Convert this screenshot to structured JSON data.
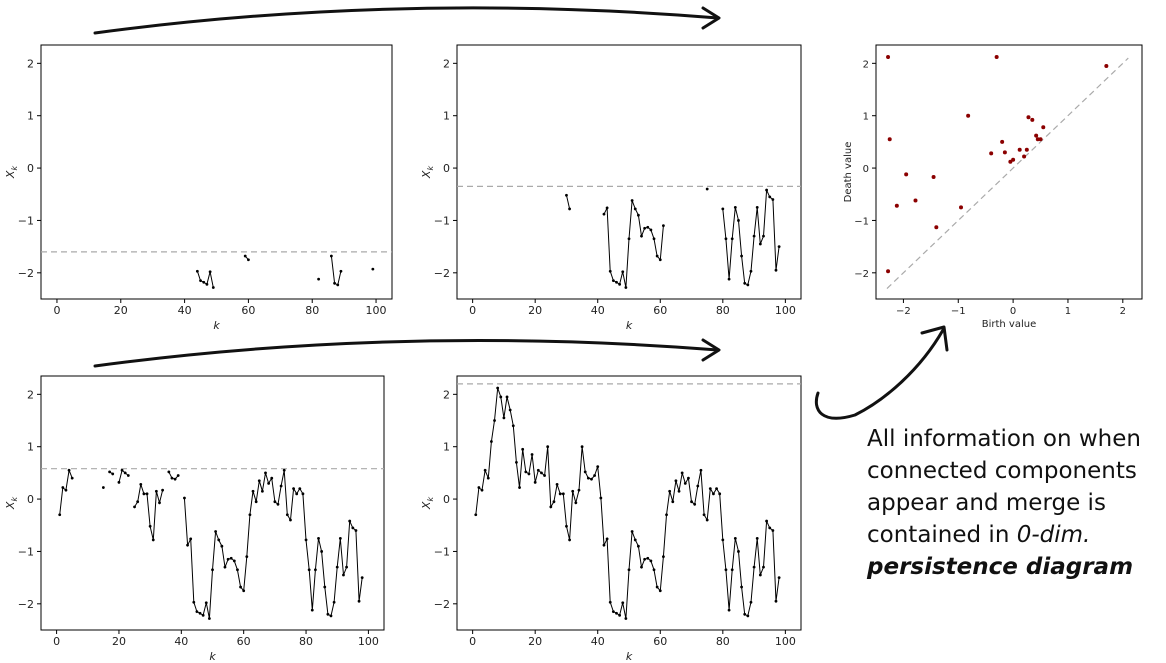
{
  "caption": {
    "line1": "All information on when",
    "line2": "connected components",
    "line3": "appear and merge is",
    "line4_a": "contained in ",
    "line4_b": "0-dim.",
    "line5": "persistence diagram"
  },
  "colors": {
    "series": "#000000",
    "threshold": "#aaaaaa",
    "diagram_points": "#8b0000",
    "arrow": "#111111"
  },
  "chart_data": [
    {
      "type": "line",
      "id": "sublevel-1",
      "xlabel": "k",
      "ylabel": "X_k",
      "xlim": [
        -5,
        105
      ],
      "ylim": [
        -2.5,
        2.35
      ],
      "xticks": [
        0,
        20,
        40,
        60,
        80,
        100
      ],
      "yticks": [
        -2,
        -1,
        0,
        1,
        2
      ],
      "threshold": -1.6,
      "segments": [
        [
          [
            44,
            -1.97
          ],
          [
            45,
            -2.15
          ],
          [
            46,
            -2.18
          ],
          [
            47,
            -2.22
          ],
          [
            48,
            -1.98
          ],
          [
            49,
            -2.28
          ]
        ],
        [
          [
            59,
            -1.68
          ],
          [
            60,
            -1.75
          ]
        ],
        [
          [
            82,
            -2.12
          ]
        ],
        [
          [
            86,
            -1.68
          ],
          [
            87,
            -2.2
          ],
          [
            88,
            -2.23
          ],
          [
            89,
            -1.97
          ]
        ],
        [
          [
            99,
            -1.93
          ]
        ]
      ]
    },
    {
      "type": "line",
      "id": "sublevel-2",
      "xlabel": "k",
      "ylabel": "X_k",
      "xlim": [
        -5,
        105
      ],
      "ylim": [
        -2.5,
        2.35
      ],
      "xticks": [
        0,
        20,
        40,
        60,
        80,
        100
      ],
      "yticks": [
        -2,
        -1,
        0,
        1,
        2
      ],
      "threshold": -0.35,
      "segments": [
        [
          [
            30,
            -0.52
          ],
          [
            31,
            -0.78
          ]
        ],
        [
          [
            42,
            -0.88
          ],
          [
            43,
            -0.76
          ],
          [
            44,
            -1.97
          ],
          [
            45,
            -2.15
          ],
          [
            46,
            -2.18
          ],
          [
            47,
            -2.22
          ],
          [
            48,
            -1.98
          ],
          [
            49,
            -2.28
          ],
          [
            50,
            -1.35
          ],
          [
            51,
            -0.62
          ],
          [
            52,
            -0.78
          ],
          [
            53,
            -0.9
          ],
          [
            54,
            -1.3
          ],
          [
            55,
            -1.15
          ],
          [
            56,
            -1.13
          ],
          [
            57,
            -1.18
          ],
          [
            58,
            -1.35
          ],
          [
            59,
            -1.68
          ],
          [
            60,
            -1.75
          ],
          [
            61,
            -1.1
          ]
        ],
        [
          [
            75,
            -0.4
          ]
        ],
        [
          [
            80,
            -0.78
          ],
          [
            81,
            -1.35
          ],
          [
            82,
            -2.12
          ],
          [
            83,
            -1.35
          ],
          [
            84,
            -0.75
          ],
          [
            85,
            -1.0
          ],
          [
            86,
            -1.68
          ],
          [
            87,
            -2.2
          ],
          [
            88,
            -2.23
          ],
          [
            89,
            -1.97
          ],
          [
            90,
            -1.3
          ],
          [
            91,
            -0.75
          ],
          [
            92,
            -1.45
          ],
          [
            93,
            -1.3
          ],
          [
            94,
            -0.42
          ],
          [
            95,
            -0.55
          ],
          [
            96,
            -0.6
          ],
          [
            97,
            -1.95
          ],
          [
            98,
            -1.5
          ]
        ]
      ]
    },
    {
      "type": "scatter",
      "id": "persistence-diagram",
      "xlabel": "Birth value",
      "ylabel": "Death value",
      "xlim": [
        -2.5,
        2.35
      ],
      "ylim": [
        -2.5,
        2.35
      ],
      "xticks": [
        -2,
        -1,
        0,
        1,
        2
      ],
      "yticks": [
        -2,
        -1,
        0,
        1,
        2
      ],
      "diagonal": [
        -2.3,
        2.1
      ],
      "points": [
        [
          -2.28,
          2.12
        ],
        [
          -2.25,
          0.55
        ],
        [
          -2.28,
          -1.97
        ],
        [
          -2.12,
          -0.72
        ],
        [
          -1.95,
          -0.12
        ],
        [
          -1.78,
          -0.62
        ],
        [
          -1.45,
          -0.17
        ],
        [
          -1.4,
          -1.13
        ],
        [
          -0.95,
          -0.75
        ],
        [
          -0.82,
          1.0
        ],
        [
          -0.4,
          0.28
        ],
        [
          -0.3,
          2.12
        ],
        [
          -0.2,
          0.5
        ],
        [
          -0.15,
          0.3
        ],
        [
          -0.05,
          0.12
        ],
        [
          0.0,
          0.16
        ],
        [
          0.12,
          0.35
        ],
        [
          0.2,
          0.22
        ],
        [
          0.25,
          0.35
        ],
        [
          0.28,
          0.97
        ],
        [
          0.35,
          0.92
        ],
        [
          0.42,
          0.62
        ],
        [
          0.45,
          0.55
        ],
        [
          0.5,
          0.55
        ],
        [
          0.55,
          0.78
        ],
        [
          1.7,
          1.95
        ]
      ]
    },
    {
      "type": "line",
      "id": "sublevel-3",
      "xlabel": "k",
      "ylabel": "X_k",
      "xlim": [
        -5,
        105
      ],
      "ylim": [
        -2.5,
        2.35
      ],
      "xticks": [
        0,
        20,
        40,
        60,
        80,
        100
      ],
      "yticks": [
        -2,
        -1,
        0,
        1,
        2
      ],
      "threshold": 0.58,
      "segments": [
        [
          [
            1,
            -0.3
          ],
          [
            2,
            0.22
          ],
          [
            3,
            0.17
          ],
          [
            4,
            0.55
          ],
          [
            5,
            0.4
          ]
        ],
        [
          [
            15,
            0.22
          ]
        ],
        [
          [
            17,
            0.52
          ],
          [
            18,
            0.48
          ]
        ],
        [
          [
            20,
            0.32
          ],
          [
            21,
            0.55
          ],
          [
            22,
            0.5
          ],
          [
            23,
            0.45
          ]
        ],
        [
          [
            25,
            -0.15
          ],
          [
            26,
            -0.05
          ],
          [
            27,
            0.28
          ],
          [
            28,
            0.1
          ],
          [
            29,
            0.1
          ],
          [
            30,
            -0.52
          ],
          [
            31,
            -0.78
          ],
          [
            32,
            0.15
          ],
          [
            33,
            -0.07
          ],
          [
            34,
            0.17
          ]
        ],
        [
          [
            36,
            0.52
          ],
          [
            37,
            0.4
          ],
          [
            38,
            0.38
          ],
          [
            39,
            0.45
          ]
        ],
        [
          [
            41,
            0.02
          ],
          [
            42,
            -0.88
          ],
          [
            43,
            -0.76
          ],
          [
            44,
            -1.97
          ],
          [
            45,
            -2.15
          ],
          [
            46,
            -2.18
          ],
          [
            47,
            -2.22
          ],
          [
            48,
            -1.98
          ],
          [
            49,
            -2.28
          ],
          [
            50,
            -1.35
          ],
          [
            51,
            -0.62
          ],
          [
            52,
            -0.78
          ],
          [
            53,
            -0.9
          ],
          [
            54,
            -1.3
          ],
          [
            55,
            -1.15
          ],
          [
            56,
            -1.13
          ],
          [
            57,
            -1.18
          ],
          [
            58,
            -1.35
          ],
          [
            59,
            -1.68
          ],
          [
            60,
            -1.75
          ],
          [
            61,
            -1.1
          ],
          [
            62,
            -0.3
          ],
          [
            63,
            0.15
          ],
          [
            64,
            -0.05
          ],
          [
            65,
            0.35
          ],
          [
            66,
            0.15
          ],
          [
            67,
            0.5
          ],
          [
            68,
            0.3
          ],
          [
            69,
            0.4
          ],
          [
            70,
            -0.05
          ],
          [
            71,
            -0.1
          ],
          [
            72,
            0.25
          ],
          [
            73,
            0.55
          ],
          [
            74,
            -0.3
          ],
          [
            75,
            -0.4
          ],
          [
            76,
            0.2
          ],
          [
            77,
            0.1
          ],
          [
            78,
            0.2
          ],
          [
            79,
            0.1
          ],
          [
            80,
            -0.78
          ],
          [
            81,
            -1.35
          ],
          [
            82,
            -2.12
          ],
          [
            83,
            -1.35
          ],
          [
            84,
            -0.75
          ],
          [
            85,
            -1.0
          ],
          [
            86,
            -1.68
          ],
          [
            87,
            -2.2
          ],
          [
            88,
            -2.23
          ],
          [
            89,
            -1.97
          ],
          [
            90,
            -1.3
          ],
          [
            91,
            -0.75
          ],
          [
            92,
            -1.45
          ],
          [
            93,
            -1.3
          ],
          [
            94,
            -0.42
          ],
          [
            95,
            -0.55
          ],
          [
            96,
            -0.6
          ],
          [
            97,
            -1.95
          ],
          [
            98,
            -1.5
          ]
        ]
      ]
    },
    {
      "type": "line",
      "id": "sublevel-4",
      "xlabel": "k",
      "ylabel": "X_k",
      "xlim": [
        -5,
        105
      ],
      "ylim": [
        -2.5,
        2.35
      ],
      "xticks": [
        0,
        20,
        40,
        60,
        80,
        100
      ],
      "yticks": [
        -2,
        -1,
        0,
        1,
        2
      ],
      "threshold": 2.2,
      "segments": [
        [
          [
            1,
            -0.3
          ],
          [
            2,
            0.22
          ],
          [
            3,
            0.17
          ],
          [
            4,
            0.55
          ],
          [
            5,
            0.4
          ],
          [
            6,
            1.1
          ],
          [
            7,
            1.5
          ],
          [
            8,
            2.12
          ],
          [
            9,
            1.95
          ],
          [
            10,
            1.55
          ],
          [
            11,
            1.95
          ],
          [
            12,
            1.7
          ],
          [
            13,
            1.4
          ],
          [
            14,
            0.7
          ],
          [
            15,
            0.22
          ],
          [
            16,
            0.95
          ],
          [
            17,
            0.52
          ],
          [
            18,
            0.48
          ],
          [
            19,
            0.85
          ],
          [
            20,
            0.32
          ],
          [
            21,
            0.55
          ],
          [
            22,
            0.5
          ],
          [
            23,
            0.45
          ],
          [
            24,
            1.0
          ],
          [
            25,
            -0.15
          ],
          [
            26,
            -0.05
          ],
          [
            27,
            0.28
          ],
          [
            28,
            0.1
          ],
          [
            29,
            0.1
          ],
          [
            30,
            -0.52
          ],
          [
            31,
            -0.78
          ],
          [
            32,
            0.15
          ],
          [
            33,
            -0.07
          ],
          [
            34,
            0.17
          ],
          [
            35,
            1.0
          ],
          [
            36,
            0.52
          ],
          [
            37,
            0.4
          ],
          [
            38,
            0.38
          ],
          [
            39,
            0.45
          ],
          [
            40,
            0.62
          ],
          [
            41,
            0.02
          ],
          [
            42,
            -0.88
          ],
          [
            43,
            -0.76
          ],
          [
            44,
            -1.97
          ],
          [
            45,
            -2.15
          ],
          [
            46,
            -2.18
          ],
          [
            47,
            -2.22
          ],
          [
            48,
            -1.98
          ],
          [
            49,
            -2.28
          ],
          [
            50,
            -1.35
          ],
          [
            51,
            -0.62
          ],
          [
            52,
            -0.78
          ],
          [
            53,
            -0.9
          ],
          [
            54,
            -1.3
          ],
          [
            55,
            -1.15
          ],
          [
            56,
            -1.13
          ],
          [
            57,
            -1.18
          ],
          [
            58,
            -1.35
          ],
          [
            59,
            -1.68
          ],
          [
            60,
            -1.75
          ],
          [
            61,
            -1.1
          ],
          [
            62,
            -0.3
          ],
          [
            63,
            0.15
          ],
          [
            64,
            -0.05
          ],
          [
            65,
            0.35
          ],
          [
            66,
            0.15
          ],
          [
            67,
            0.5
          ],
          [
            68,
            0.3
          ],
          [
            69,
            0.4
          ],
          [
            70,
            -0.05
          ],
          [
            71,
            -0.1
          ],
          [
            72,
            0.25
          ],
          [
            73,
            0.55
          ],
          [
            74,
            -0.3
          ],
          [
            75,
            -0.4
          ],
          [
            76,
            0.2
          ],
          [
            77,
            0.1
          ],
          [
            78,
            0.2
          ],
          [
            79,
            0.1
          ],
          [
            80,
            -0.78
          ],
          [
            81,
            -1.35
          ],
          [
            82,
            -2.12
          ],
          [
            83,
            -1.35
          ],
          [
            84,
            -0.75
          ],
          [
            85,
            -1.0
          ],
          [
            86,
            -1.68
          ],
          [
            87,
            -2.2
          ],
          [
            88,
            -2.23
          ],
          [
            89,
            -1.97
          ],
          [
            90,
            -1.3
          ],
          [
            91,
            -0.75
          ],
          [
            92,
            -1.45
          ],
          [
            93,
            -1.3
          ],
          [
            94,
            -0.42
          ],
          [
            95,
            -0.55
          ],
          [
            96,
            -0.6
          ],
          [
            97,
            -1.95
          ],
          [
            98,
            -1.5
          ]
        ]
      ]
    }
  ]
}
